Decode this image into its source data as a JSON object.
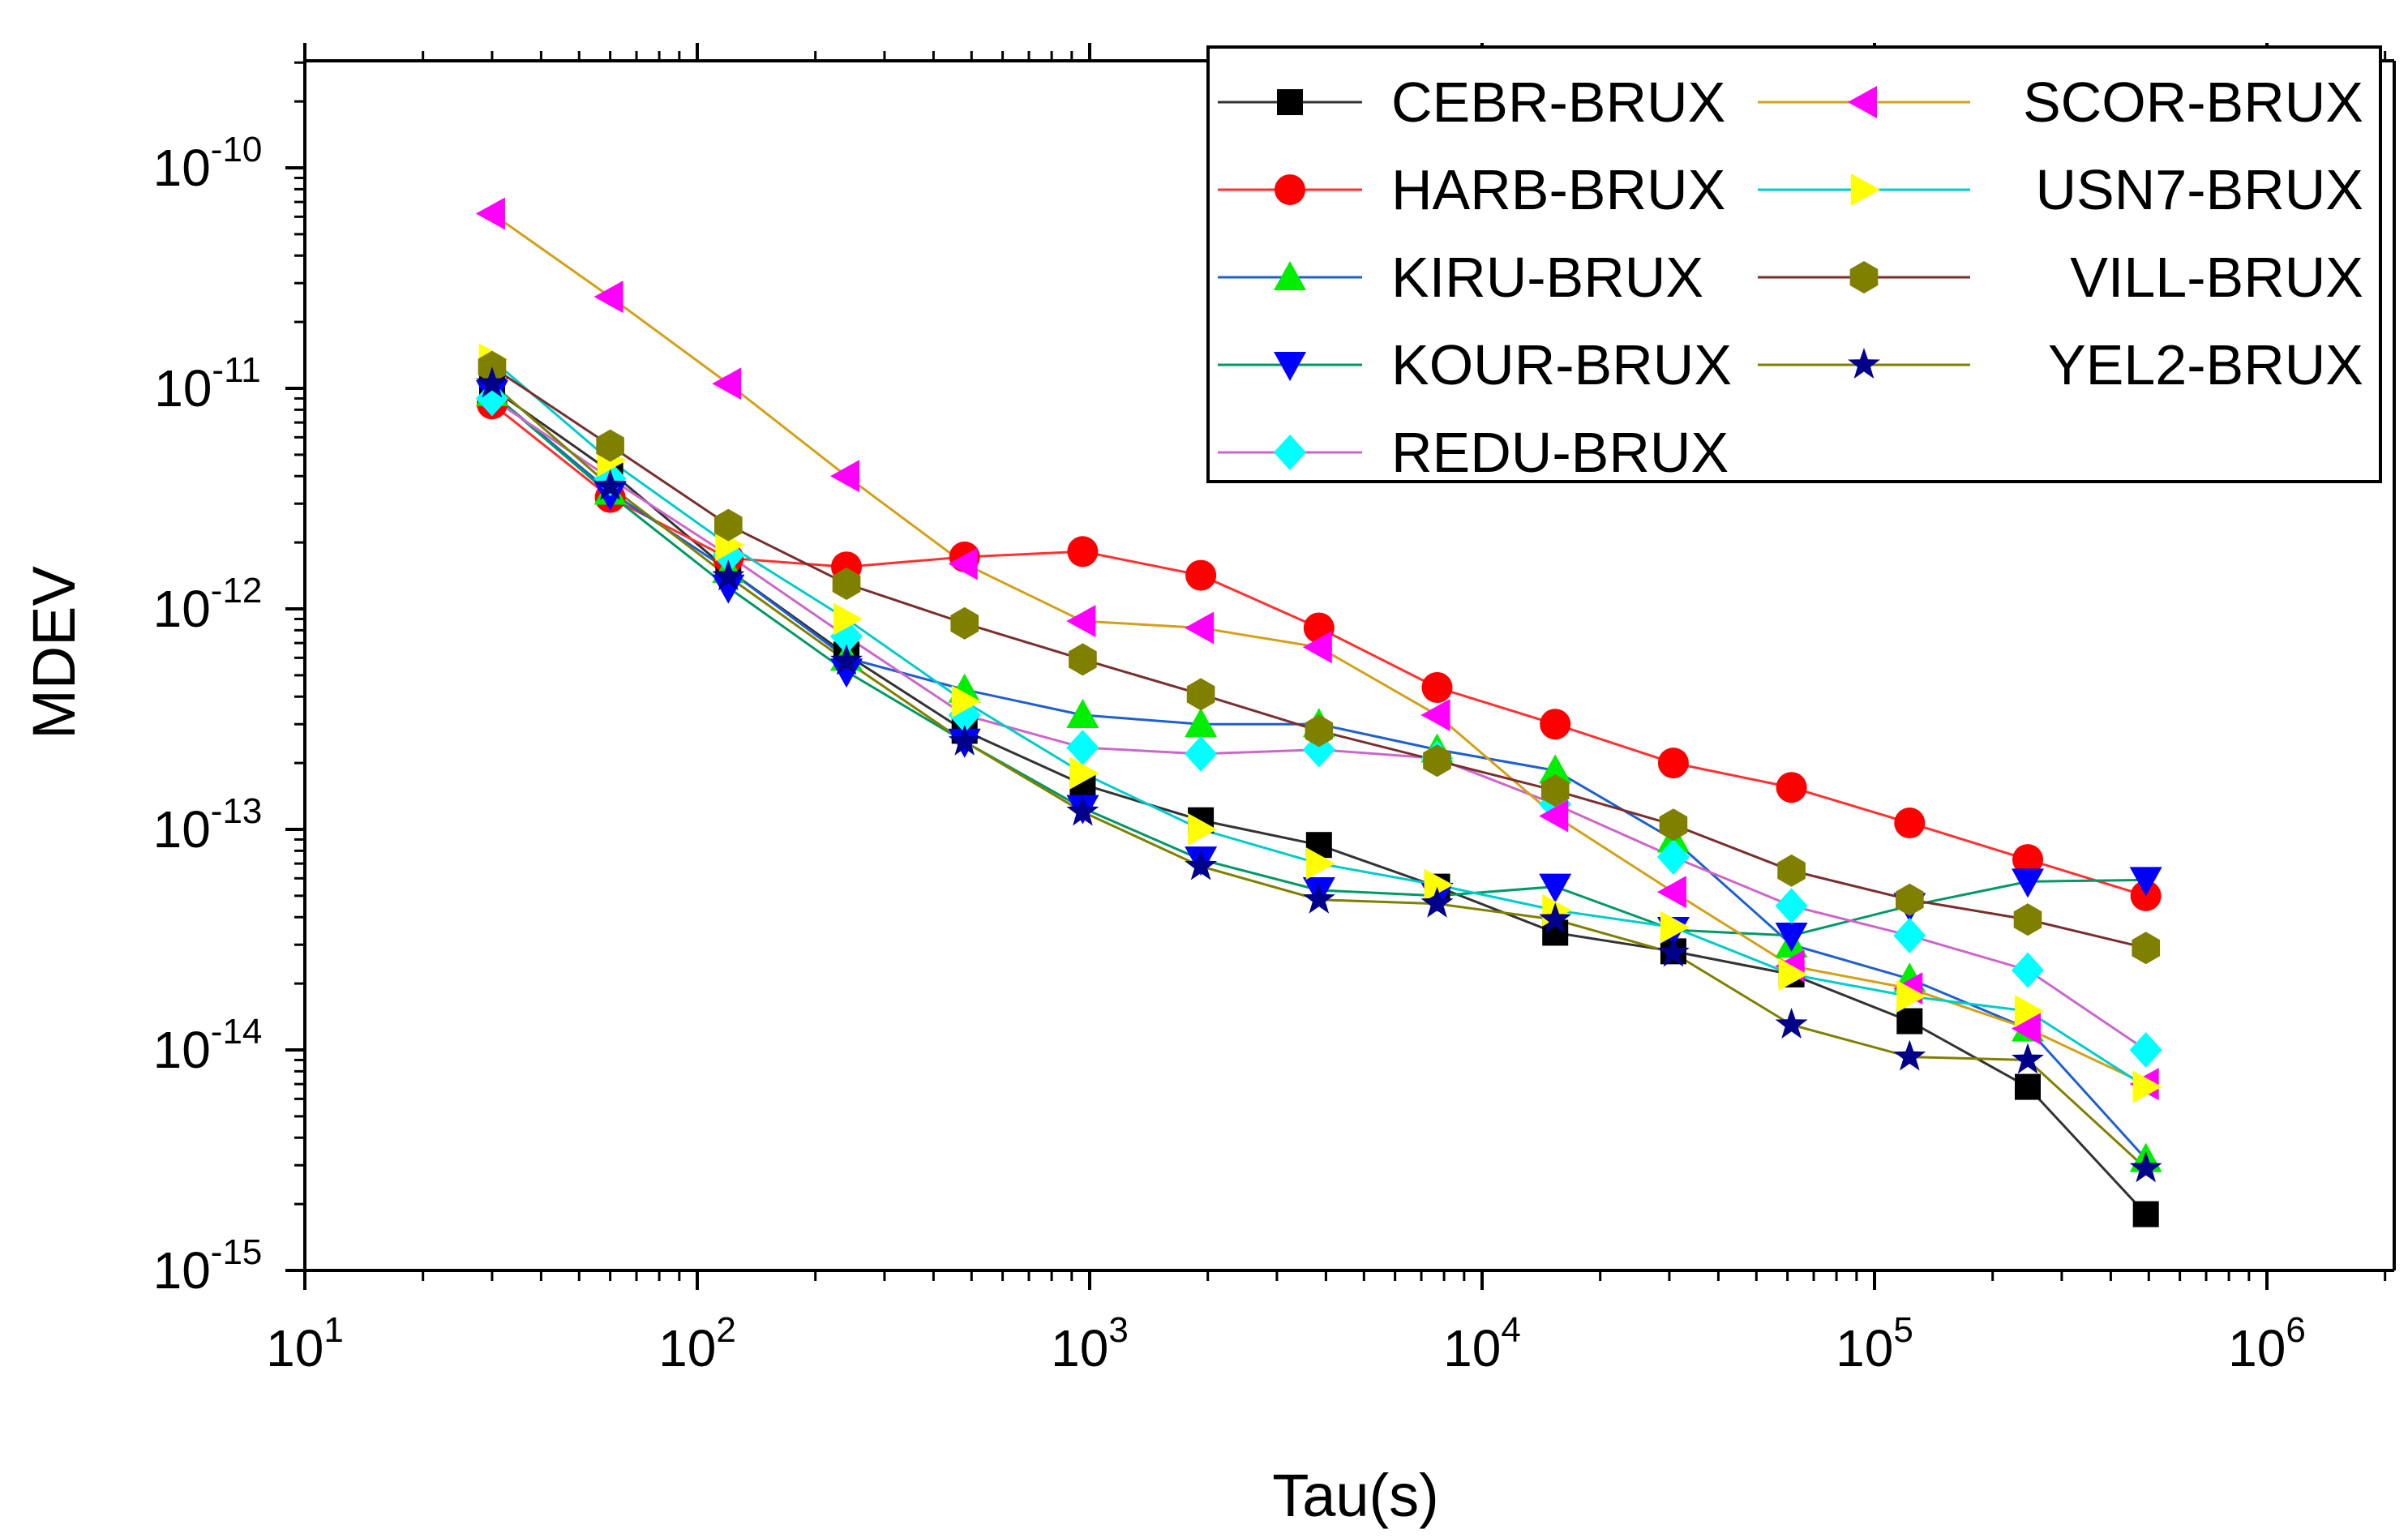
{
  "chart_data": {
    "type": "scatter",
    "title": "",
    "xlabel": "Tau(s)",
    "ylabel": "MDEV",
    "xscale": "log",
    "yscale": "log",
    "xlim": [
      10,
      2000000
    ],
    "ylim": [
      7e-16,
      3e-10
    ],
    "x_ticks": [
      {
        "value": 10,
        "base": "10",
        "exp": "1"
      },
      {
        "value": 100,
        "base": "10",
        "exp": "2"
      },
      {
        "value": 1000,
        "base": "10",
        "exp": "3"
      },
      {
        "value": 10000,
        "base": "10",
        "exp": "4"
      },
      {
        "value": 100000,
        "base": "10",
        "exp": "5"
      },
      {
        "value": 1000000,
        "base": "10",
        "exp": "6"
      }
    ],
    "y_ticks": [
      {
        "value": 1e-15,
        "base": "10",
        "exp": "-15"
      },
      {
        "value": 1e-14,
        "base": "10",
        "exp": "-14"
      },
      {
        "value": 1e-13,
        "base": "10",
        "exp": "-13"
      },
      {
        "value": 1e-12,
        "base": "10",
        "exp": "-12"
      },
      {
        "value": 1e-11,
        "base": "10",
        "exp": "-11"
      },
      {
        "value": 1e-10,
        "base": "10",
        "exp": "-10"
      }
    ],
    "x": [
      30,
      60,
      120,
      240,
      480,
      960,
      1920,
      3840,
      7680,
      15360,
      30720,
      61440,
      122880,
      245760,
      491520
    ],
    "legend_position": "top-right",
    "series": [
      {
        "name": "CEBR-BRUX",
        "color": "#000000",
        "line_color": "#333333",
        "marker": "square",
        "values": [
          1e-11,
          4.2e-12,
          1.5e-12,
          6.2e-13,
          2.8e-13,
          1.6e-13,
          1.1e-13,
          8.5e-14,
          5.5e-14,
          3.4e-14,
          2.8e-14,
          2.2e-14,
          1.35e-14,
          6.8e-15,
          1.8e-15
        ]
      },
      {
        "name": "HARB-BRUX",
        "color": "#ff0000",
        "line_color": "#ff3030",
        "marker": "circle",
        "values": [
          8.5e-12,
          3.2e-12,
          1.7e-12,
          1.55e-12,
          1.72e-12,
          1.82e-12,
          1.42e-12,
          8.2e-13,
          4.4e-13,
          3e-13,
          2e-13,
          1.55e-13,
          1.07e-13,
          7.3e-14,
          5e-14
        ]
      },
      {
        "name": "KIRU-BRUX",
        "color": "#00ee00",
        "line_color": "#1f5fd0",
        "marker": "triangle-up",
        "values": [
          9.5e-12,
          3.4e-12,
          1.5e-12,
          6e-13,
          4.3e-13,
          3.3e-13,
          3e-13,
          3e-13,
          2.3e-13,
          1.85e-13,
          9e-14,
          3e-14,
          2.1e-14,
          1.25e-14,
          3.2e-15
        ]
      },
      {
        "name": "KOUR-BRUX",
        "color": "#0000ff",
        "line_color": "#009966",
        "marker": "triangle-down",
        "values": [
          9.5e-12,
          3.3e-12,
          1.25e-12,
          5.2e-13,
          2.5e-13,
          1.25e-13,
          7.3e-14,
          5.3e-14,
          5e-14,
          5.5e-14,
          3.5e-14,
          3.3e-14,
          4.5e-14,
          5.8e-14,
          5.9e-14
        ]
      },
      {
        "name": "REDU-BRUX",
        "color": "#00ffff",
        "line_color": "#cc66cc",
        "marker": "diamond",
        "values": [
          9e-12,
          3.9e-12,
          1.75e-12,
          7.5e-13,
          3.3e-13,
          2.35e-13,
          2.2e-13,
          2.3e-13,
          2.1e-13,
          1.3e-13,
          7.5e-14,
          4.5e-14,
          3.3e-14,
          2.3e-14,
          1e-14
        ]
      },
      {
        "name": "SCOR-BRUX",
        "color": "#ff00ff",
        "line_color": "#d4a017",
        "marker": "triangle-left",
        "values": [
          6.2e-11,
          2.6e-11,
          1.05e-11,
          4e-12,
          1.6e-12,
          8.8e-13,
          8.2e-13,
          6.7e-13,
          3.3e-13,
          1.15e-13,
          5.2e-14,
          2.4e-14,
          1.9e-14,
          1.25e-14,
          7e-15
        ]
      },
      {
        "name": "USN7-BRUX",
        "color": "#ffff00",
        "line_color": "#00cccc",
        "marker": "triangle-right",
        "values": [
          1.35e-11,
          4.7e-12,
          1.95e-12,
          9e-13,
          3.8e-13,
          1.8e-13,
          1e-13,
          7e-14,
          5.6e-14,
          4.3e-14,
          3.6e-14,
          2.2e-14,
          1.75e-14,
          1.5e-14,
          6.8e-15
        ]
      },
      {
        "name": "VILL-BRUX",
        "color": "#808000",
        "line_color": "#7a2e2e",
        "marker": "hexagon",
        "values": [
          1.25e-11,
          5.5e-12,
          2.4e-12,
          1.3e-12,
          8.6e-13,
          5.9e-13,
          4.1e-13,
          2.8e-13,
          2.05e-13,
          1.5e-13,
          1.05e-13,
          6.5e-14,
          4.8e-14,
          3.9e-14,
          2.9e-14
        ]
      },
      {
        "name": "YEL2-BRUX",
        "color": "#00008b",
        "line_color": "#808000",
        "marker": "star",
        "values": [
          1.05e-11,
          3.6e-12,
          1.4e-12,
          5.8e-13,
          2.5e-13,
          1.2e-13,
          6.8e-14,
          4.8e-14,
          4.6e-14,
          3.9e-14,
          2.75e-14,
          1.3e-14,
          9.3e-15,
          9e-15,
          2.9e-15
        ]
      }
    ]
  }
}
